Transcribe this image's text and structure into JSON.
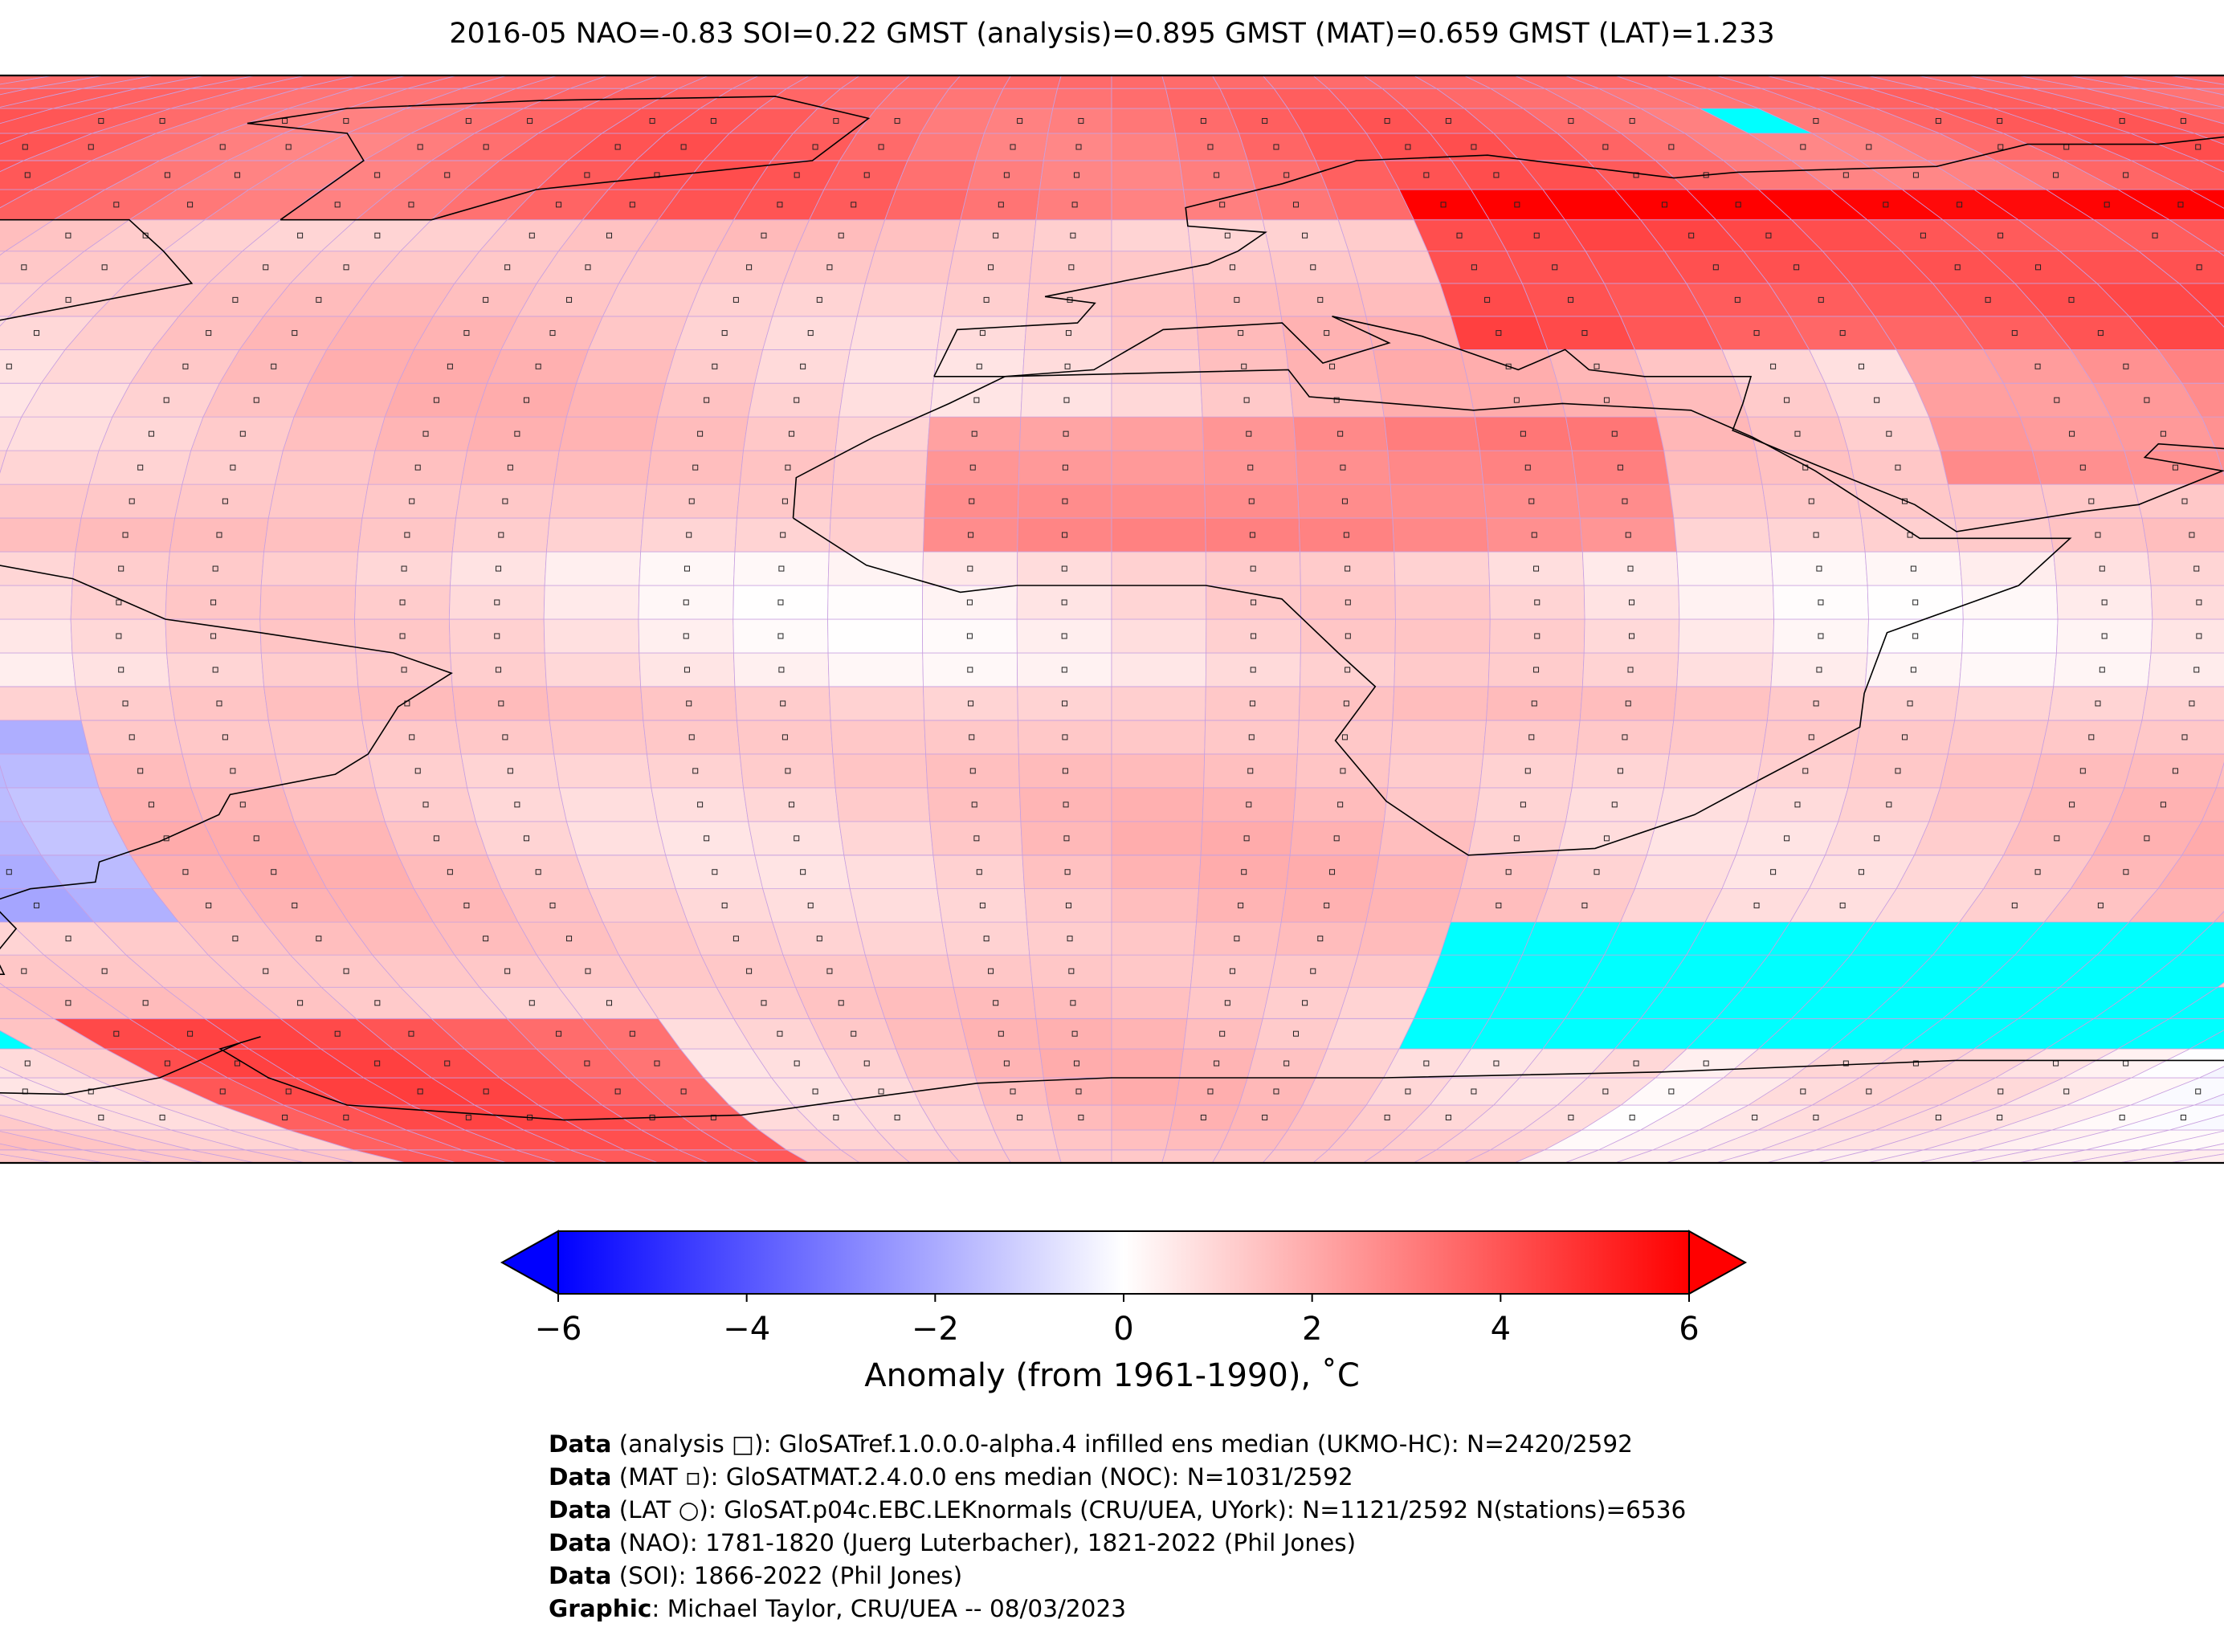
{
  "title": "2016-05 NAO=-0.83 SOI=0.22 GMST (analysis)=0.895 GMST (MAT)=0.659 GMST (LAT)=1.233",
  "map": {
    "projection": "Robinson",
    "colormap": "bwr",
    "missing_color": "#00ffff",
    "features": [
      "coastlines",
      "country-borders",
      "grid-cells",
      "station-markers"
    ]
  },
  "colorbar": {
    "ticks": [
      "−6",
      "−4",
      "−2",
      "0",
      "2",
      "4",
      "6"
    ],
    "min": -6,
    "max": 6,
    "extend": "both",
    "label": "Anomaly (from 1961-1990), ˚C"
  },
  "credits": [
    {
      "key": "Data",
      "text": " (analysis □): GloSATref.1.0.0.0-alpha.4 infilled ens median (UKMO-HC): N=2420/2592"
    },
    {
      "key": "Data",
      "text": " (MAT ▫): GloSATMAT.2.4.0.0 ens median (NOC): N=1031/2592"
    },
    {
      "key": "Data",
      "text": " (LAT ○): GloSAT.p04c.EBC.LEKnormals (CRU/UEA, UYork): N=1121/2592 N(stations)=6536"
    },
    {
      "key": "Data",
      "text": " (NAO): 1781-1820 (Juerg Luterbacher), 1821-2022 (Phil Jones)"
    },
    {
      "key": "Data",
      "text": " (SOI): 1866-2022 (Phil Jones)"
    },
    {
      "key": "Graphic",
      "text": ": Michael Taylor, CRU/UEA -- 08/03/2023"
    }
  ]
}
